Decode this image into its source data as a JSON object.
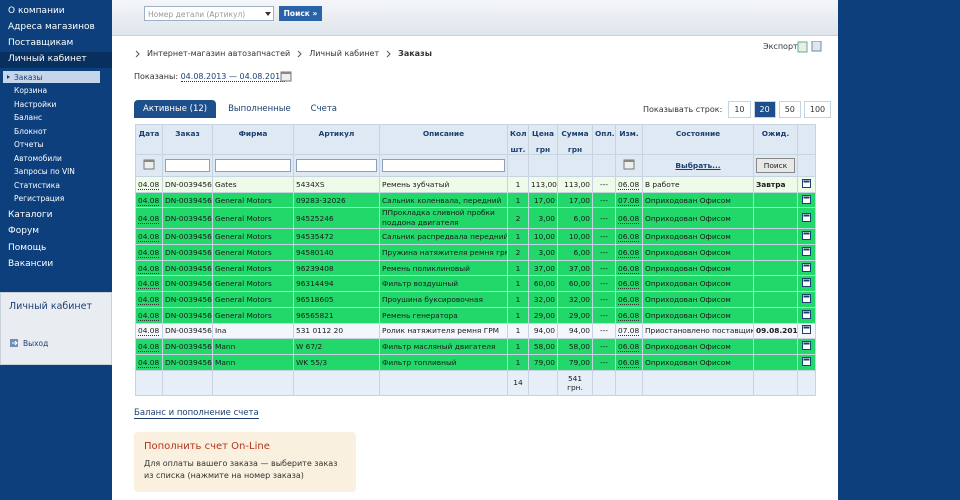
{
  "sidebar": {
    "menu": [
      "О компании",
      "Адреса магазинов",
      "Поставщикам"
    ],
    "active": "Личный кабинет",
    "submenu": [
      "Заказы",
      "Корзина",
      "Настройки",
      "Баланс",
      "Блокнот",
      "Отчеты",
      "Автомобили",
      "Запросы по VIN",
      "Статистика",
      "Регистрация"
    ],
    "menu2": [
      "Каталоги",
      "Форум",
      "Помощь",
      "Вакансии"
    ],
    "box": {
      "title": "Личный кабинет",
      "logout": "Выход"
    }
  },
  "header": {
    "search_placeholder": "Номер детали (Артикул)",
    "search_button": "Поиск »"
  },
  "breadcrumb": [
    "Интернет-магазин автозапчастей",
    "Личный кабинет",
    "Заказы"
  ],
  "export": "Экспорт",
  "period": {
    "label": "Показаны:",
    "range": "04.08.2013 — 04.08.2013"
  },
  "tabs": [
    "Активные (12)",
    "Выполненные",
    "Счета"
  ],
  "rows_per_page": {
    "label": "Показывать строк:",
    "options": [
      "10",
      "20",
      "50",
      "100"
    ],
    "selected": "20"
  },
  "table": {
    "columns": [
      {
        "title": "Дата"
      },
      {
        "title": "Заказ"
      },
      {
        "title": "Фирма"
      },
      {
        "title": "Артикул"
      },
      {
        "title": "Описание"
      },
      {
        "title": "Кол",
        "unit": "шт."
      },
      {
        "title": "Цена",
        "unit": "грн"
      },
      {
        "title": "Сумма",
        "unit": "грн"
      },
      {
        "title": "Опл."
      },
      {
        "title": "Изм."
      },
      {
        "title": "Состояние"
      },
      {
        "title": "Ожид."
      }
    ],
    "filter_select": "Выбрать...",
    "filter_button": "Поиск",
    "rows": [
      {
        "color": "#eefbe8",
        "cells": [
          "04.08",
          "DN-0039456",
          "Gates",
          "5434XS",
          "Ремень зубчатый",
          "1",
          "113,00",
          "113,00",
          "---",
          "06.08",
          "В работе",
          "Завтра"
        ]
      },
      {
        "color": "#22d86a",
        "cells": [
          "04.08",
          "DN-0039456",
          "General Motors",
          "09283-32026",
          "Сальник коленвала, передний",
          "1",
          "17,00",
          "17,00",
          "---",
          "07.08",
          "Оприходован Офисом",
          ""
        ]
      },
      {
        "color": "#22d86a",
        "cells": [
          "04.08",
          "DN-0039456",
          "General Motors",
          "94525246",
          "ППрокладка сливной пробки поддона двигателя",
          "2",
          "3,00",
          "6,00",
          "---",
          "06.08",
          "Оприходован Офисом",
          ""
        ]
      },
      {
        "color": "#22d86a",
        "cells": [
          "04.08",
          "DN-0039456",
          "General Motors",
          "94535472",
          "Сальник распредвала передний",
          "1",
          "10,00",
          "10,00",
          "---",
          "06.08",
          "Оприходован Офисом",
          ""
        ]
      },
      {
        "color": "#22d86a",
        "cells": [
          "04.08",
          "DN-0039456",
          "General Motors",
          "94580140",
          "Пружина натяжителя ремня грм",
          "2",
          "3,00",
          "6,00",
          "---",
          "06.08",
          "Оприходован Офисом",
          ""
        ]
      },
      {
        "color": "#22d86a",
        "cells": [
          "04.08",
          "DN-0039456",
          "General Motors",
          "96239408",
          "Ремень поликлиновый",
          "1",
          "37,00",
          "37,00",
          "---",
          "06.08",
          "Оприходован Офисом",
          ""
        ]
      },
      {
        "color": "#22d86a",
        "cells": [
          "04.08",
          "DN-0039456",
          "General Motors",
          "96314494",
          "Фильтр воздушный",
          "1",
          "60,00",
          "60,00",
          "---",
          "06.08",
          "Оприходован Офисом",
          ""
        ]
      },
      {
        "color": "#22d86a",
        "cells": [
          "04.08",
          "DN-0039456",
          "General Motors",
          "96518605",
          "Проушина буксировочная",
          "1",
          "32,00",
          "32,00",
          "---",
          "06.08",
          "Оприходован Офисом",
          ""
        ]
      },
      {
        "color": "#22d86a",
        "cells": [
          "04.08",
          "DN-0039456",
          "General Motors",
          "96565821",
          "Ремень генератора",
          "1",
          "29,00",
          "29,00",
          "---",
          "06.08",
          "Оприходован Офисом",
          ""
        ]
      },
      {
        "color": "#f3f6fa",
        "cells": [
          "04.08",
          "DN-0039456",
          "Ina",
          "531 0112 20",
          "Ролик натяжителя ремня ГРМ",
          "1",
          "94,00",
          "94,00",
          "---",
          "07.08",
          "Приостановлено поставщиком",
          "09.08.2013"
        ]
      },
      {
        "color": "#22d86a",
        "cells": [
          "04.08",
          "DN-0039456",
          "Mann",
          "W 67/2",
          "Фильтр масляный двигателя",
          "1",
          "58,00",
          "58,00",
          "---",
          "06.08",
          "Оприходован Офисом",
          ""
        ]
      },
      {
        "color": "#22d86a",
        "cells": [
          "04.08",
          "DN-0039456",
          "Mann",
          "WK 55/3",
          "Фильтр топливный",
          "1",
          "79,00",
          "79,00",
          "---",
          "06.08",
          "Оприходован Офисом",
          ""
        ]
      }
    ],
    "totals": {
      "qty": "14",
      "sum": "541 грн."
    }
  },
  "balance": {
    "link": "Баланс и пополнение счета",
    "title": "Пополнить счет On-Line",
    "text": "Для оплаты вашего заказа — выберите заказ из списка (нажмите на номер заказа)"
  }
}
